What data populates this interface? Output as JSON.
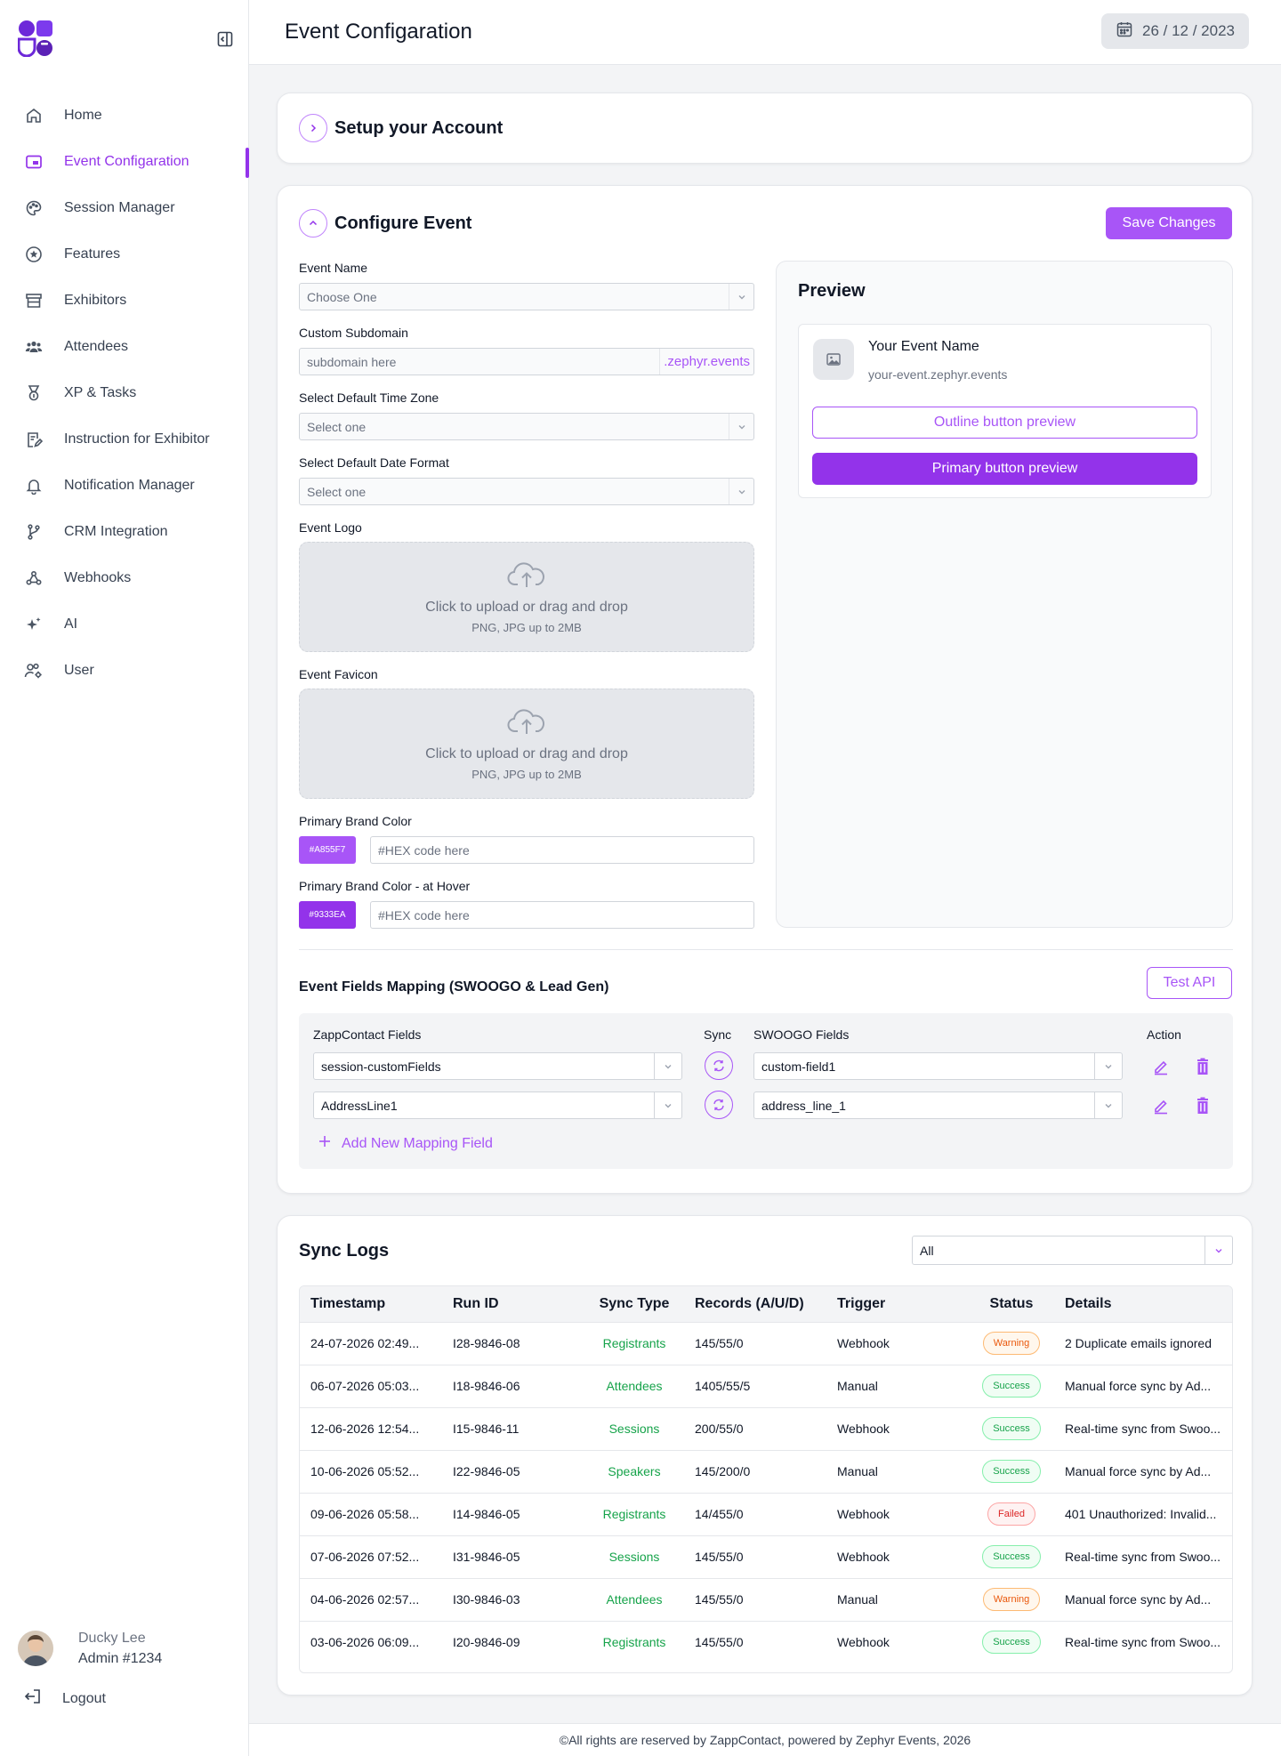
{
  "header": {
    "title": "Event Configaration",
    "date": "26 / 12 / 2023"
  },
  "sidebar": {
    "items": [
      {
        "label": "Home",
        "icon": "home-icon"
      },
      {
        "label": "Event Configaration",
        "icon": "event-config-icon",
        "active": true
      },
      {
        "label": "Session Manager",
        "icon": "palette-icon"
      },
      {
        "label": "Features",
        "icon": "star-icon"
      },
      {
        "label": "Exhibitors",
        "icon": "archive-icon"
      },
      {
        "label": "Attendees",
        "icon": "users-group-icon"
      },
      {
        "label": "XP & Tasks",
        "icon": "medal-icon"
      },
      {
        "label": "Instruction for Exhibitor",
        "icon": "document-edit-icon"
      },
      {
        "label": "Notification Manager",
        "icon": "bell-icon"
      },
      {
        "label": "CRM Integration",
        "icon": "branch-icon"
      },
      {
        "label": "Webhooks",
        "icon": "webhook-icon"
      },
      {
        "label": "AI",
        "icon": "sparkle-icon"
      },
      {
        "label": "User",
        "icon": "user-settings-icon"
      }
    ],
    "profile": {
      "name": "Ducky Lee",
      "role": "Admin #1234"
    },
    "logout_label": "Logout"
  },
  "setup": {
    "title": "Setup your Account"
  },
  "configure": {
    "title": "Configure Event",
    "save_label": "Save Changes",
    "event_name": {
      "label": "Event Name",
      "value": "Choose One"
    },
    "subdomain": {
      "label": "Custom Subdomain",
      "placeholder": "subdomain here",
      "suffix": ".zephyr.events"
    },
    "timezone": {
      "label": "Select Default Time Zone",
      "value": "Select one"
    },
    "date_format": {
      "label": "Select Default Date Format",
      "value": "Select one"
    },
    "logo": {
      "label": "Event Logo",
      "line1": "Click to upload or drag and drop",
      "line2": "PNG, JPG up to 2MB"
    },
    "favicon": {
      "label": "Event Favicon",
      "line1": "Click to upload or drag and drop",
      "line2": "PNG, JPG up to 2MB"
    },
    "primary_color": {
      "label": "Primary Brand Color",
      "swatch": "#A855F7",
      "placeholder": "#HEX code here",
      "color": "#a855f7"
    },
    "hover_color": {
      "label": "Primary Brand Color - at Hover",
      "swatch": "#9333EA",
      "placeholder": "#HEX code here",
      "color": "#9333ea"
    },
    "preview": {
      "title": "Preview",
      "event_name": "Your Event Name",
      "event_url": "your-event.zephyr.events",
      "outline_label": "Outline button preview",
      "primary_label": "Primary button preview"
    },
    "mapping": {
      "title": "Event Fields Mapping (SWOOGO & Lead Gen)",
      "test_label": "Test API",
      "headers": {
        "zapp": "ZappContact Fields",
        "sync": "Sync",
        "swoogo": "SWOOGO Fields",
        "action": "Action"
      },
      "rows": [
        {
          "zapp": "session-customFields",
          "swoogo": "custom-field1"
        },
        {
          "zapp": "AddressLine1",
          "swoogo": "address_line_1"
        }
      ],
      "add_label": "Add New Mapping Field"
    }
  },
  "logs": {
    "title": "Sync Logs",
    "filter": "All",
    "columns": [
      "Timestamp",
      "Run ID",
      "Sync Type",
      "Records (A/U/D)",
      "Trigger",
      "Status",
      "Details"
    ],
    "rows": [
      {
        "ts": "24-07-2026 02:49...",
        "run": "I28-9846-08",
        "type": "Registrants",
        "rec": "145/55/0",
        "trig": "Webhook",
        "status": "Warning",
        "details": "2 Duplicate emails ignored"
      },
      {
        "ts": "06-07-2026 05:03...",
        "run": "I18-9846-06",
        "type": "Attendees",
        "rec": "1405/55/5",
        "trig": "Manual",
        "status": "Success",
        "details": "Manual force sync by Ad..."
      },
      {
        "ts": "12-06-2026 12:54...",
        "run": "I15-9846-11",
        "type": "Sessions",
        "rec": "200/55/0",
        "trig": "Webhook",
        "status": "Success",
        "details": "Real-time sync from Swoo..."
      },
      {
        "ts": "10-06-2026 05:52...",
        "run": "I22-9846-05",
        "type": "Speakers",
        "rec": "145/200/0",
        "trig": "Manual",
        "status": "Success",
        "details": "Manual force sync by Ad..."
      },
      {
        "ts": "09-06-2026 05:58...",
        "run": "I14-9846-05",
        "type": "Registrants",
        "rec": "14/455/0",
        "trig": "Webhook",
        "status": "Failed",
        "details": "401 Unauthorized: Invalid..."
      },
      {
        "ts": "07-06-2026 07:52...",
        "run": "I31-9846-05",
        "type": "Sessions",
        "rec": "145/55/0",
        "trig": "Webhook",
        "status": "Success",
        "details": "Real-time sync from Swoo..."
      },
      {
        "ts": "04-06-2026 02:57...",
        "run": "I30-9846-03",
        "type": "Attendees",
        "rec": "145/55/0",
        "trig": "Manual",
        "status": "Warning",
        "details": "Manual force sync by Ad..."
      },
      {
        "ts": "03-06-2026 06:09...",
        "run": "I20-9846-09",
        "type": "Registrants",
        "rec": "145/55/0",
        "trig": "Webhook",
        "status": "Success",
        "details": "Real-time sync from Swoo..."
      }
    ]
  },
  "footer": {
    "text": "©All rights are reserved by ZappContact, powered by Zephyr Events, 2026"
  },
  "colors": {
    "accent": "#a855f7",
    "accent_dark": "#9333ea",
    "success": "#16a34a",
    "warning": "#ea580c",
    "failed": "#dc2626"
  }
}
